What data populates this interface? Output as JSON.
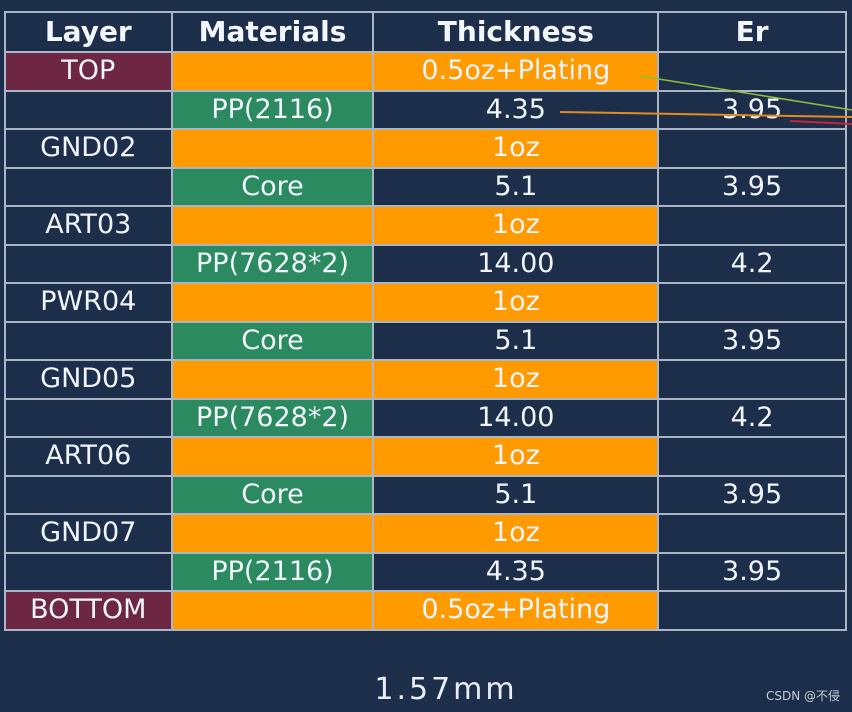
{
  "headers": [
    "Layer",
    "Materials",
    "Thickness",
    "Er"
  ],
  "rows": [
    {
      "layer": "TOP",
      "material": "",
      "thickness": "0.5oz+Plating",
      "er": "",
      "kind": "cu",
      "highlight": true
    },
    {
      "layer": "",
      "material": "PP(2116)",
      "thickness": "4.35",
      "er": "3.95",
      "kind": "pp",
      "highlight": false
    },
    {
      "layer": "GND02",
      "material": "",
      "thickness": "1oz",
      "er": "",
      "kind": "cu",
      "highlight": false
    },
    {
      "layer": "",
      "material": "Core",
      "thickness": "5.1",
      "er": "3.95",
      "kind": "pp",
      "highlight": false
    },
    {
      "layer": "ART03",
      "material": "",
      "thickness": "1oz",
      "er": "",
      "kind": "cu",
      "highlight": false
    },
    {
      "layer": "",
      "material": "PP(7628*2)",
      "thickness": "14.00",
      "er": "4.2",
      "kind": "pp",
      "highlight": false
    },
    {
      "layer": "PWR04",
      "material": "",
      "thickness": "1oz",
      "er": "",
      "kind": "cu",
      "highlight": false
    },
    {
      "layer": "",
      "material": "Core",
      "thickness": "5.1",
      "er": "3.95",
      "kind": "pp",
      "highlight": false
    },
    {
      "layer": "GND05",
      "material": "",
      "thickness": "1oz",
      "er": "",
      "kind": "cu",
      "highlight": false
    },
    {
      "layer": "",
      "material": "PP(7628*2)",
      "thickness": "14.00",
      "er": "4.2",
      "kind": "pp",
      "highlight": false
    },
    {
      "layer": "ART06",
      "material": "",
      "thickness": "1oz",
      "er": "",
      "kind": "cu",
      "highlight": false
    },
    {
      "layer": "",
      "material": "Core",
      "thickness": "5.1",
      "er": "3.95",
      "kind": "pp",
      "highlight": false
    },
    {
      "layer": "GND07",
      "material": "",
      "thickness": "1oz",
      "er": "",
      "kind": "cu",
      "highlight": false
    },
    {
      "layer": "",
      "material": "PP(2116)",
      "thickness": "4.35",
      "er": "3.95",
      "kind": "pp",
      "highlight": false
    },
    {
      "layer": "BOTTOM",
      "material": "",
      "thickness": "0.5oz+Plating",
      "er": "",
      "kind": "cu",
      "highlight": true
    }
  ],
  "total_thickness": "1.57mm",
  "watermark": "CSDN @不侵",
  "colors": {
    "background": "#1c2e4a",
    "grid": "#aab6c6",
    "copper": "#ff9a00",
    "prepreg": "#2b8a5f",
    "layer_highlight": "#6d2743",
    "annotation_green": "#8fbf3a",
    "annotation_orange": "#e58a1f",
    "annotation_red": "#c8233a"
  }
}
